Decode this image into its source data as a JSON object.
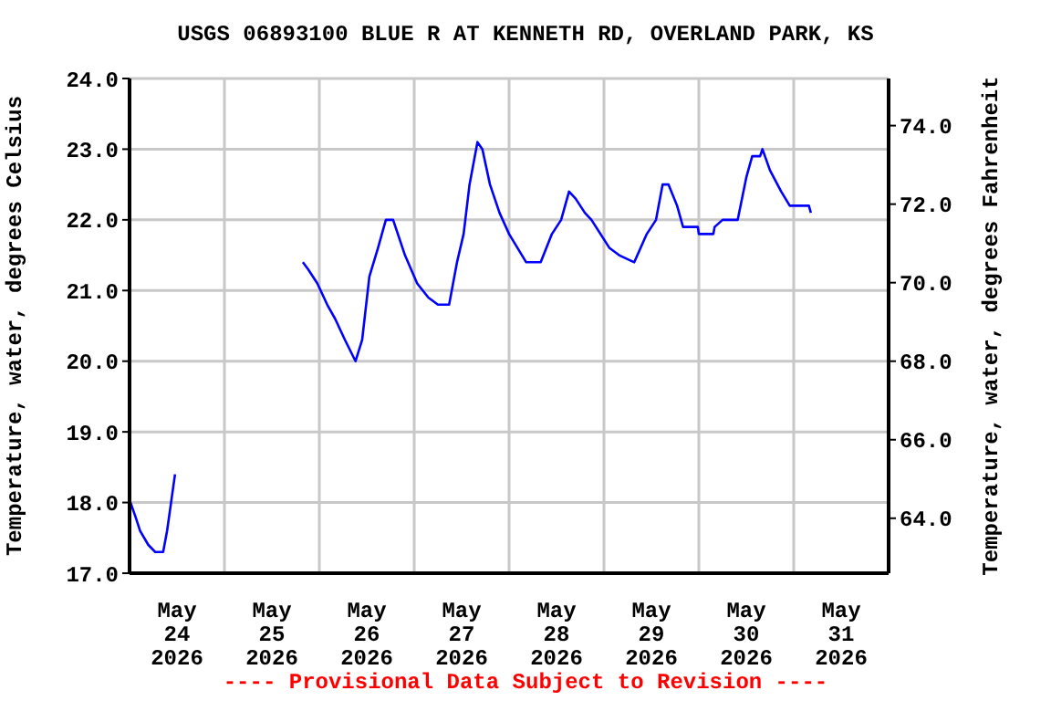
{
  "chart_data": {
    "type": "line",
    "title": "USGS 06893100 BLUE R AT KENNETH RD, OVERLAND PARK, KS",
    "ylabel": "Temperature, water, degrees Celsius",
    "y2label": "Temperature, water, degrees Fahrenheit",
    "annotations": [
      "---- Provisional Data Subject to Revision ----"
    ],
    "x": [
      "2026-05-24T00:15",
      "2026-05-24T01:30",
      "2026-05-24T02:40",
      "2026-05-24T04:45",
      "2026-05-24T06:30",
      "2026-05-24T08:30",
      "2026-05-24T09:30",
      "2026-05-24T10:30",
      "2026-05-24T11:30",
      "2026-05-25T06:00",
      "2026-05-25T19:50",
      "2026-05-25T21:10",
      "2026-05-25T23:30",
      "2026-05-26T02:00",
      "2026-05-26T04:00",
      "2026-05-26T06:30",
      "2026-05-26T09:10",
      "2026-05-26T10:50",
      "2026-05-26T12:40",
      "2026-05-26T14:50",
      "2026-05-26T16:50",
      "2026-05-26T18:40",
      "2026-05-26T21:40",
      "2026-05-27T00:45",
      "2026-05-27T03:35",
      "2026-05-27T06:00",
      "2026-05-27T08:50",
      "2026-05-27T10:50",
      "2026-05-27T12:30",
      "2026-05-27T14:00",
      "2026-05-27T16:00",
      "2026-05-27T17:15",
      "2026-05-27T19:10",
      "2026-05-27T21:35",
      "2026-05-28T00:00",
      "2026-05-28T04:20",
      "2026-05-28T08:00",
      "2026-05-28T10:50",
      "2026-05-28T13:10",
      "2026-05-28T15:10",
      "2026-05-28T16:50",
      "2026-05-28T19:10",
      "2026-05-28T20:50",
      "2026-05-29T01:25",
      "2026-05-29T03:50",
      "2026-05-29T07:40",
      "2026-05-29T10:50",
      "2026-05-29T13:10",
      "2026-05-29T14:50",
      "2026-05-29T16:20",
      "2026-05-29T18:30",
      "2026-05-29T20:00",
      "2026-05-29T23:45",
      "2026-05-30T00:00",
      "2026-05-30T03:40",
      "2026-05-30T04:00",
      "2026-05-30T06:00",
      "2026-05-30T09:50",
      "2026-05-30T12:00",
      "2026-05-30T13:30",
      "2026-05-30T15:30",
      "2026-05-30T16:05",
      "2026-05-30T18:00",
      "2026-05-30T20:50",
      "2026-05-30T23:00",
      "2026-05-31T03:50",
      "2026-05-31T04:20"
    ],
    "series": [
      {
        "color": "#0000ff",
        "values": [
          18.0,
          17.8,
          17.6,
          17.4,
          17.3,
          17.3,
          17.6,
          18.0,
          18.4,
          null,
          21.4,
          21.3,
          21.1,
          20.8,
          20.6,
          20.3,
          20.0,
          20.3,
          21.2,
          21.6,
          22.0,
          22.0,
          21.5,
          21.1,
          20.9,
          20.8,
          20.8,
          21.4,
          21.8,
          22.5,
          23.1,
          23.0,
          22.5,
          22.1,
          21.8,
          21.4,
          21.4,
          21.8,
          22.0,
          22.4,
          22.3,
          22.1,
          22.0,
          21.6,
          21.5,
          21.4,
          21.8,
          22.0,
          22.5,
          22.5,
          22.2,
          21.9,
          21.9,
          21.8,
          21.8,
          21.9,
          22.0,
          22.0,
          22.6,
          22.9,
          22.9,
          23.0,
          22.7,
          22.4,
          22.2,
          22.2,
          22.1
        ]
      }
    ],
    "xlim": [
      "2026-05-24T00:00",
      "2026-06-01T00:00"
    ],
    "xticks": [
      {
        "value": "2026-05-24T12:00",
        "label": "May 24 2026"
      },
      {
        "value": "2026-05-25T12:00",
        "label": "May 25 2026"
      },
      {
        "value": "2026-05-26T12:00",
        "label": "May 26 2026"
      },
      {
        "value": "2026-05-27T12:00",
        "label": "May 27 2026"
      },
      {
        "value": "2026-05-28T12:00",
        "label": "May 28 2026"
      },
      {
        "value": "2026-05-29T12:00",
        "label": "May 29 2026"
      },
      {
        "value": "2026-05-30T12:00",
        "label": "May 30 2026"
      },
      {
        "value": "2026-05-31T12:00",
        "label": "May 31 2026"
      },
      {
        "value": "2026-05-25T00:00",
        "label": null
      },
      {
        "value": "2026-05-26T00:00",
        "label": null
      },
      {
        "value": "2026-05-27T00:00",
        "label": null
      },
      {
        "value": "2026-05-28T00:00",
        "label": null
      },
      {
        "value": "2026-05-29T00:00",
        "label": null
      },
      {
        "value": "2026-05-30T00:00",
        "label": null
      },
      {
        "value": "2026-05-31T00:00",
        "label": null
      }
    ],
    "ylim": [
      17,
      24
    ],
    "yticks": [
      {
        "value": 17,
        "label": "17.0"
      },
      {
        "value": 18,
        "label": "18.0"
      },
      {
        "value": 19,
        "label": "19.0"
      },
      {
        "value": 20,
        "label": "20.0"
      },
      {
        "value": 21,
        "label": "21.0"
      },
      {
        "value": 22,
        "label": "22.0"
      },
      {
        "value": 23,
        "label": "23.0"
      },
      {
        "value": 24,
        "label": "24.0"
      }
    ],
    "y2lim": [
      62.6,
      75.2
    ],
    "y2ticks": [
      {
        "value": 64,
        "label": "64.0"
      },
      {
        "value": 66,
        "label": "66.0"
      },
      {
        "value": 68,
        "label": "68.0"
      },
      {
        "value": 70,
        "label": "70.0"
      },
      {
        "value": 72,
        "label": "72.0"
      },
      {
        "value": 74,
        "label": "74.0"
      }
    ],
    "grid": true,
    "legend": false,
    "marker": "none",
    "line_style": "solid"
  }
}
